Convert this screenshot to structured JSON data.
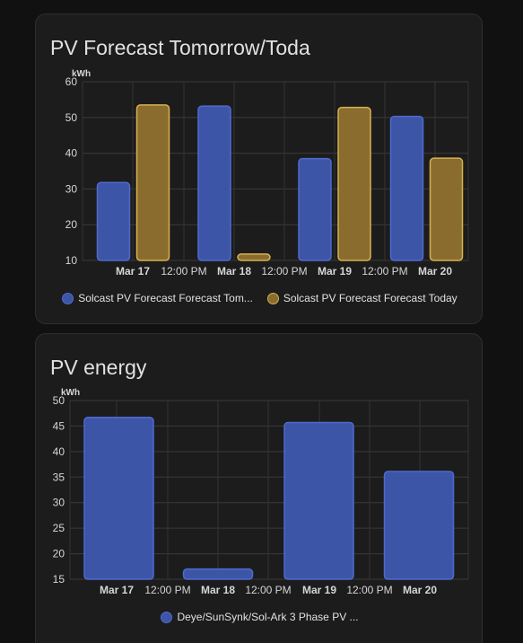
{
  "cards": [
    {
      "title": "PV Forecast Tomorrow/Toda",
      "chart_data": {
        "type": "bar",
        "unit": "kWh",
        "ylim": [
          10,
          60
        ],
        "yticks": [
          10,
          20,
          30,
          40,
          50,
          60
        ],
        "x_tick_labels": [
          "Mar 17",
          "12:00 PM",
          "Mar 18",
          "12:00 PM",
          "Mar 19",
          "12:00 PM",
          "Mar 20"
        ],
        "x_tick_bold": [
          true,
          false,
          true,
          false,
          true,
          false,
          true
        ],
        "categories": [
          "Mar 17",
          "Mar 18",
          "Mar 19",
          "Mar 20"
        ],
        "grid": true,
        "series": [
          {
            "name": "Solcast PV Forecast Forecast Tom...",
            "color": "#3d55a6",
            "border": "#4f6ad0",
            "values": [
              31.8,
              53.2,
              38.5,
              50.3
            ]
          },
          {
            "name": "Solcast PV Forecast Forecast Today",
            "color": "#8a6d2e",
            "border": "#d8b050",
            "values": [
              53.5,
              11.8,
              52.8,
              38.6
            ]
          }
        ]
      }
    },
    {
      "title": "PV energy",
      "chart_data": {
        "type": "bar",
        "unit": "kWh",
        "ylim": [
          15,
          50
        ],
        "yticks": [
          15,
          20,
          25,
          30,
          35,
          40,
          45,
          50
        ],
        "x_tick_labels": [
          "Mar 17",
          "12:00 PM",
          "Mar 18",
          "12:00 PM",
          "Mar 19",
          "12:00 PM",
          "Mar 20"
        ],
        "x_tick_bold": [
          true,
          false,
          true,
          false,
          true,
          false,
          true
        ],
        "categories": [
          "Mar 17",
          "Mar 18",
          "Mar 19",
          "Mar 20"
        ],
        "grid": true,
        "series": [
          {
            "name": "Deye/SunSynk/Sol-Ark 3 Phase PV ...",
            "color": "#3d55a6",
            "border": "#4f6ad0",
            "values": [
              46.7,
              17.0,
              45.7,
              36.1
            ]
          }
        ]
      }
    }
  ]
}
